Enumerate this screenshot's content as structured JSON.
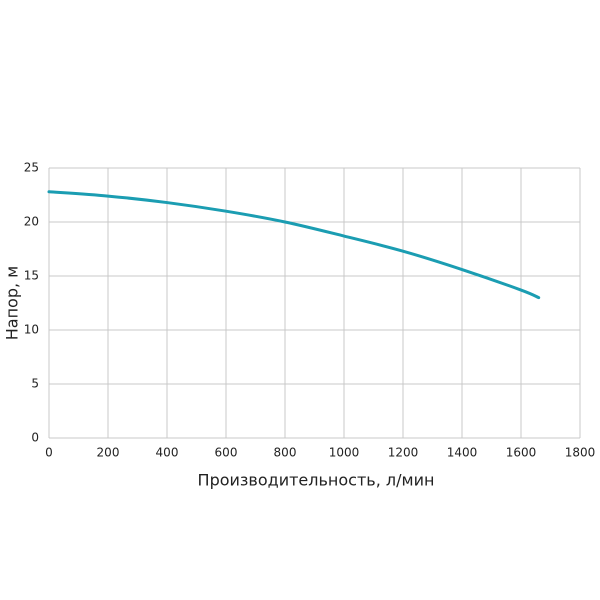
{
  "chart_data": {
    "type": "line",
    "x_label": "Производительность, л/мин",
    "y_label": "Напор, м",
    "series": [
      {
        "color": "#1b9db2",
        "x": [
          0,
          200,
          400,
          600,
          800,
          1000,
          1200,
          1400,
          1600,
          1660
        ],
        "values": [
          22.8,
          22.4,
          21.8,
          21.0,
          20.0,
          18.7,
          17.3,
          15.6,
          13.7,
          13.0
        ]
      }
    ],
    "xlim": [
      0,
      1800
    ],
    "xticks": [
      0,
      200,
      400,
      600,
      800,
      1000,
      1200,
      1400,
      1600,
      1800
    ],
    "ylim": [
      0,
      25
    ],
    "yticks": [
      0,
      5,
      10,
      15,
      20,
      25
    ],
    "grid": true
  }
}
